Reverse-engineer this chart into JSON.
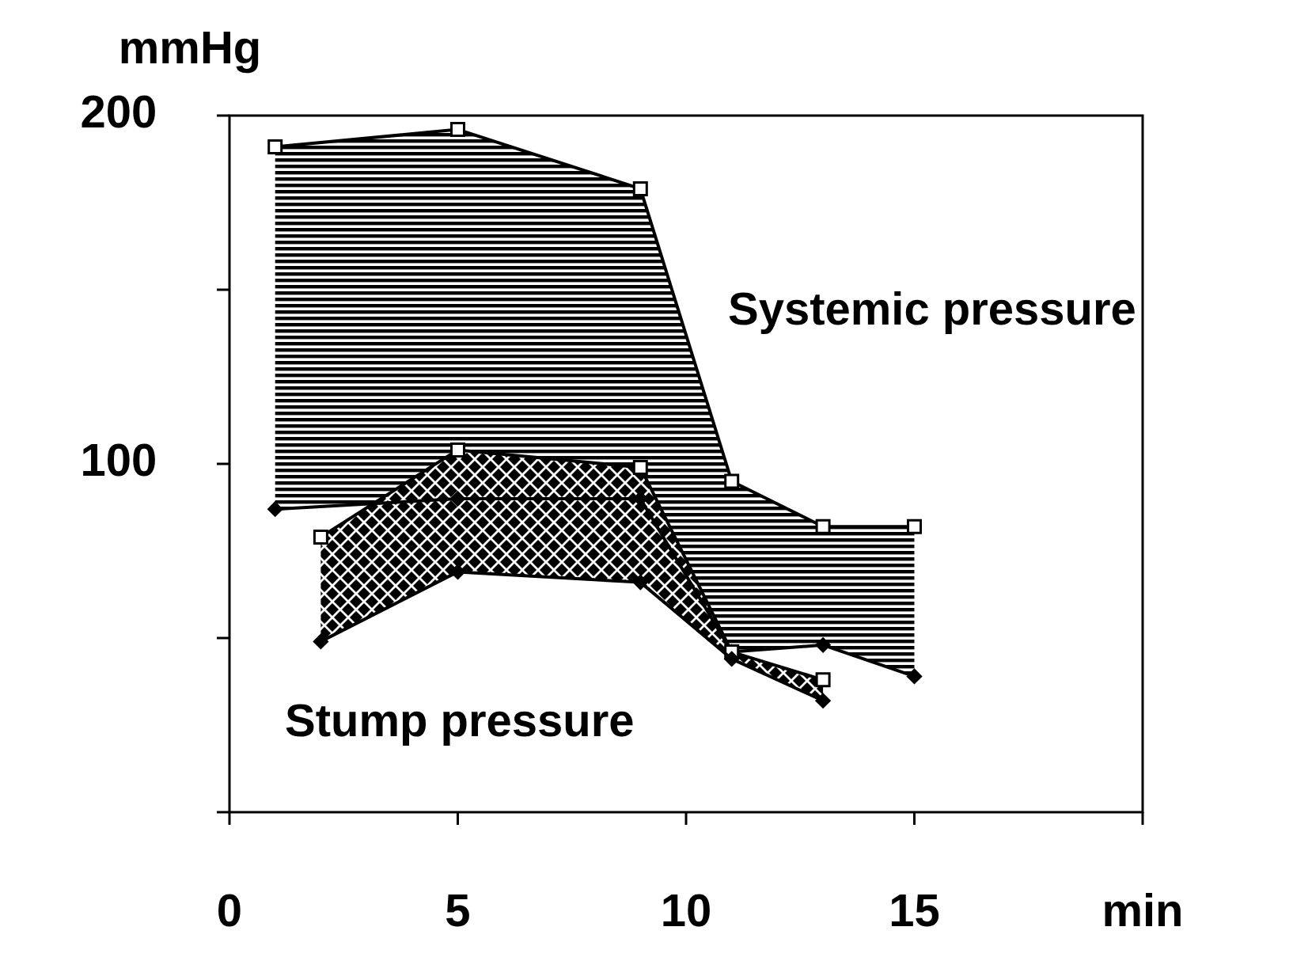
{
  "chart_data": {
    "type": "line",
    "ylabel": "mmHg",
    "xlabel": "min",
    "xlim": [
      0,
      20
    ],
    "xticks": [
      0,
      5,
      10,
      15,
      {
        "value": 20,
        "label": null
      }
    ],
    "ylim": [
      0,
      200
    ],
    "yticks": [
      {
        "value": 0,
        "label": null
      },
      {
        "value": 50,
        "label": null
      },
      100,
      {
        "value": 150,
        "label": null
      },
      200
    ],
    "grid": false,
    "series": [
      {
        "name": "Systemic pressure",
        "color": "#000000",
        "marker": "square",
        "x": [
          1,
          5,
          9,
          11,
          13,
          15
        ],
        "values": [
          191,
          196,
          179,
          95,
          82,
          82
        ]
      },
      {
        "color": "#000000",
        "marker": "diamond",
        "x": [
          1,
          5,
          9,
          11,
          13,
          15
        ],
        "values": [
          87,
          90,
          90,
          46,
          48,
          39
        ]
      },
      {
        "name": "Stump pressure",
        "color": "#000000",
        "marker": "square",
        "x": [
          2,
          5,
          9,
          11,
          13
        ],
        "values": [
          79,
          104,
          99,
          46,
          38
        ]
      },
      {
        "color": "#000000",
        "marker": "diamond",
        "x": [
          2,
          5,
          9,
          11,
          13
        ],
        "values": [
          49,
          69,
          66,
          44,
          32
        ]
      }
    ]
  }
}
